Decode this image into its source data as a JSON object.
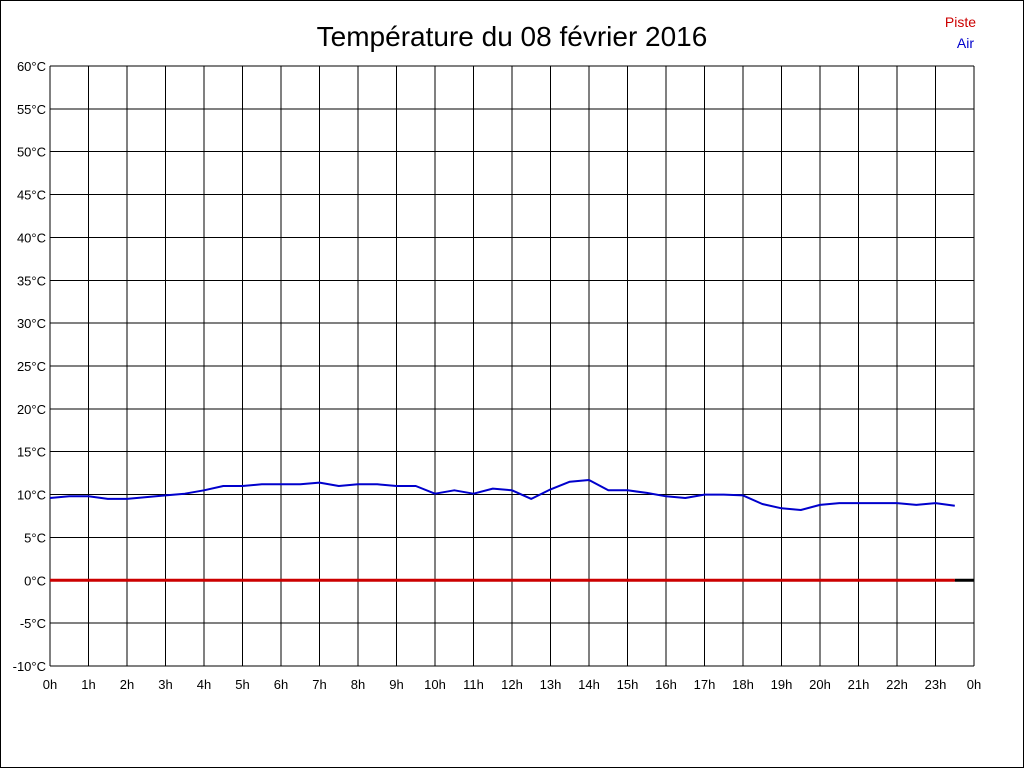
{
  "chart_data": {
    "type": "line",
    "title": "Température du 08 février 2016",
    "xlabel": "",
    "ylabel": "",
    "ylim": [
      -10,
      60
    ],
    "xlim": [
      0,
      24
    ],
    "y_ticks": [
      "60°C",
      "55°C",
      "50°C",
      "45°C",
      "40°C",
      "35°C",
      "30°C",
      "25°C",
      "20°C",
      "15°C",
      "10°C",
      "5°C",
      "0°C",
      "-5°C",
      "-10°C"
    ],
    "y_tick_values": [
      60,
      55,
      50,
      45,
      40,
      35,
      30,
      25,
      20,
      15,
      10,
      5,
      0,
      -5,
      -10
    ],
    "x_ticks": [
      "0h",
      "1h",
      "2h",
      "3h",
      "4h",
      "5h",
      "6h",
      "7h",
      "8h",
      "9h",
      "10h",
      "11h",
      "12h",
      "13h",
      "14h",
      "15h",
      "16h",
      "17h",
      "18h",
      "19h",
      "20h",
      "21h",
      "22h",
      "23h",
      "0h"
    ],
    "grid": true,
    "legend_position": "top-right",
    "series": [
      {
        "name": "Piste",
        "color": "#cc0000",
        "x": [
          0,
          23.5
        ],
        "values": [
          0,
          0
        ]
      },
      {
        "name": "Air",
        "color": "#0000cc",
        "x": [
          0,
          0.5,
          1,
          1.5,
          2,
          2.5,
          3,
          3.5,
          4,
          4.5,
          5,
          5.5,
          6,
          6.5,
          7,
          7.5,
          8,
          8.5,
          9,
          9.5,
          10,
          10.5,
          11,
          11.5,
          12,
          12.5,
          13,
          13.5,
          14,
          14.5,
          15,
          15.5,
          16,
          16.5,
          17,
          17.5,
          18,
          18.5,
          19,
          19.5,
          20,
          20.5,
          21,
          21.5,
          22,
          22.5,
          23,
          23.5
        ],
        "values": [
          9.6,
          9.8,
          9.8,
          9.5,
          9.5,
          9.7,
          9.9,
          10.1,
          10.5,
          11.0,
          11.0,
          11.2,
          11.2,
          11.2,
          11.4,
          11.0,
          11.2,
          11.2,
          11.0,
          11.0,
          10.1,
          10.5,
          10.1,
          10.7,
          10.5,
          9.5,
          10.6,
          11.5,
          11.7,
          10.5,
          10.5,
          10.2,
          9.8,
          9.6,
          10.0,
          10.0,
          9.9,
          8.9,
          8.4,
          8.2,
          8.8,
          9.0,
          9.0,
          9.0,
          9.0,
          8.8,
          9.0,
          8.7
        ]
      }
    ]
  }
}
